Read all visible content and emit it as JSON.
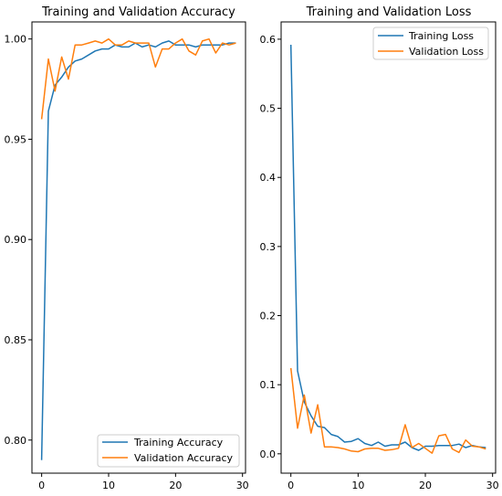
{
  "chart_data": [
    {
      "type": "line",
      "title": "Training and Validation Accuracy",
      "xlabel": "",
      "ylabel": "",
      "xlim": [
        -1.45,
        30.45
      ],
      "ylim": [
        0.7835,
        1.0085
      ],
      "xticks": [
        0,
        10,
        20,
        30
      ],
      "yticks": [
        0.8,
        0.85,
        0.9,
        0.95,
        1.0
      ],
      "ytick_labels": [
        "0.80",
        "0.85",
        "0.90",
        "0.95",
        "1.00"
      ],
      "legend_position": "lower-right",
      "grid": false,
      "x": [
        0,
        1,
        2,
        3,
        4,
        5,
        6,
        7,
        8,
        9,
        10,
        11,
        12,
        13,
        14,
        15,
        16,
        17,
        18,
        19,
        20,
        21,
        22,
        23,
        24,
        25,
        26,
        27,
        28,
        29
      ],
      "series": [
        {
          "name": "Training Accuracy",
          "color": "#1f77b4",
          "values": [
            0.79,
            0.964,
            0.977,
            0.981,
            0.986,
            0.989,
            0.99,
            0.992,
            0.994,
            0.995,
            0.995,
            0.997,
            0.996,
            0.996,
            0.998,
            0.996,
            0.997,
            0.996,
            0.998,
            0.999,
            0.997,
            0.997,
            0.997,
            0.996,
            0.997,
            0.997,
            0.997,
            0.997,
            0.998,
            0.998
          ]
        },
        {
          "name": "Validation Accuracy",
          "color": "#ff7f0e",
          "values": [
            0.96,
            0.99,
            0.974,
            0.991,
            0.98,
            0.997,
            0.997,
            0.998,
            0.999,
            0.998,
            1.0,
            0.997,
            0.997,
            0.999,
            0.998,
            0.998,
            0.998,
            0.986,
            0.995,
            0.995,
            0.998,
            1.0,
            0.994,
            0.992,
            0.999,
            1.0,
            0.993,
            0.998,
            0.997,
            0.998
          ]
        }
      ]
    },
    {
      "type": "line",
      "title": "Training and Validation Loss",
      "xlabel": "",
      "ylabel": "",
      "xlim": [
        -1.45,
        30.45
      ],
      "ylim": [
        -0.028,
        0.625
      ],
      "xticks": [
        0,
        10,
        20,
        30
      ],
      "yticks": [
        0.0,
        0.1,
        0.2,
        0.3,
        0.4,
        0.5,
        0.6
      ],
      "ytick_labels": [
        "0.0",
        "0.1",
        "0.2",
        "0.3",
        "0.4",
        "0.5",
        "0.6"
      ],
      "legend_position": "upper-right",
      "grid": false,
      "x": [
        0,
        1,
        2,
        3,
        4,
        5,
        6,
        7,
        8,
        9,
        10,
        11,
        12,
        13,
        14,
        15,
        16,
        17,
        18,
        19,
        20,
        21,
        22,
        23,
        24,
        25,
        26,
        27,
        28,
        29
      ],
      "series": [
        {
          "name": "Training Loss",
          "color": "#1f77b4",
          "values": [
            0.592,
            0.12,
            0.075,
            0.055,
            0.04,
            0.038,
            0.028,
            0.025,
            0.017,
            0.018,
            0.022,
            0.015,
            0.012,
            0.017,
            0.011,
            0.013,
            0.013,
            0.017,
            0.009,
            0.005,
            0.011,
            0.011,
            0.012,
            0.012,
            0.012,
            0.014,
            0.009,
            0.012,
            0.01,
            0.009
          ]
        },
        {
          "name": "Validation Loss",
          "color": "#ff7f0e",
          "values": [
            0.124,
            0.037,
            0.085,
            0.03,
            0.071,
            0.01,
            0.01,
            0.009,
            0.007,
            0.004,
            0.003,
            0.007,
            0.008,
            0.008,
            0.005,
            0.006,
            0.008,
            0.042,
            0.009,
            0.015,
            0.008,
            0.001,
            0.026,
            0.028,
            0.007,
            0.002,
            0.02,
            0.011,
            0.01,
            0.007
          ]
        }
      ]
    }
  ]
}
